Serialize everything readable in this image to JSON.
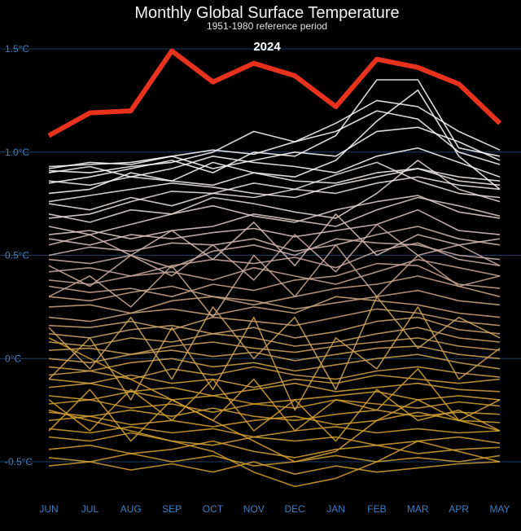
{
  "chart_data": {
    "type": "line",
    "title": "Monthly Global Surface Temperature",
    "subtitle": "1951-1980 reference period",
    "highlight_label": "2024",
    "xlabel": "",
    "ylabel": "",
    "categories": [
      "JUN",
      "JUL",
      "AUG",
      "SEP",
      "OCT",
      "NOV",
      "DEC",
      "JAN",
      "FEB",
      "MAR",
      "APR",
      "MAY"
    ],
    "ylim": [
      -0.65,
      1.62
    ],
    "y_ticks": [
      {
        "value": 1.5,
        "label": "1.5°C"
      },
      {
        "value": 1.0,
        "label": "1.0°C"
      },
      {
        "value": 0.5,
        "label": "0.5°C"
      },
      {
        "value": 0.0,
        "label": "0°C"
      },
      {
        "value": -0.5,
        "label": "-0.5°C"
      }
    ],
    "grid": true,
    "legend": "none",
    "colors": {
      "highlight": "#e8321e",
      "warm": "#ffffff",
      "neutral": "#c8a8a0",
      "cool": "#d4a030",
      "axis": "#3d7fc4",
      "gridline": "#1c3d63"
    },
    "series": [
      {
        "values": [
          1.08,
          1.19,
          1.2,
          1.49,
          1.34,
          1.43,
          1.37,
          1.22,
          1.45,
          1.41,
          1.33,
          1.14
        ],
        "highlight": true
      },
      {
        "values": [
          0.92,
          0.95,
          0.94,
          0.98,
          1.01,
          0.99,
          1.05,
          1.1,
          1.2,
          1.16,
          1.0,
          0.94
        ]
      },
      {
        "values": [
          0.91,
          0.9,
          0.93,
          0.95,
          1.0,
          1.1,
          1.05,
          1.14,
          1.25,
          1.22,
          1.1,
          1.01
        ]
      },
      {
        "values": [
          0.85,
          0.88,
          0.92,
          0.96,
          0.9,
          1.0,
          0.98,
          1.08,
          1.35,
          1.35,
          1.02,
          0.98
        ]
      },
      {
        "values": [
          0.93,
          0.94,
          0.95,
          0.98,
          0.92,
          0.96,
          1.0,
          0.98,
          1.1,
          1.12,
          1.05,
          0.96
        ]
      },
      {
        "values": [
          0.8,
          0.82,
          0.9,
          0.86,
          0.95,
          0.9,
          0.88,
          0.96,
          1.15,
          1.3,
          0.98,
          0.82
        ]
      },
      {
        "values": [
          0.9,
          0.93,
          0.88,
          0.92,
          0.98,
          0.95,
          0.93,
          0.9,
          0.98,
          1.02,
          0.95,
          0.88
        ]
      },
      {
        "values": [
          0.76,
          0.79,
          0.82,
          0.85,
          0.83,
          0.8,
          0.78,
          0.84,
          0.88,
          0.92,
          0.86,
          0.84
        ]
      },
      {
        "values": [
          0.68,
          0.7,
          0.76,
          0.81,
          0.8,
          0.78,
          0.82,
          0.89,
          0.95,
          0.86,
          0.8,
          0.78
        ]
      },
      {
        "values": [
          0.7,
          0.66,
          0.72,
          0.7,
          0.78,
          0.75,
          0.71,
          0.68,
          0.8,
          0.96,
          0.82,
          0.76
        ]
      },
      {
        "values": [
          0.64,
          0.6,
          0.65,
          0.7,
          0.74,
          0.69,
          0.66,
          0.72,
          0.76,
          0.79,
          0.71,
          0.68
        ]
      },
      {
        "values": [
          0.6,
          0.62,
          0.58,
          0.62,
          0.64,
          0.7,
          0.67,
          0.64,
          0.72,
          0.78,
          0.74,
          0.69
        ]
      },
      {
        "values": [
          0.58,
          0.55,
          0.6,
          0.58,
          0.61,
          0.63,
          0.59,
          0.62,
          0.65,
          0.72,
          0.62,
          0.6
        ]
      },
      {
        "values": [
          0.5,
          0.54,
          0.52,
          0.56,
          0.55,
          0.58,
          0.52,
          0.55,
          0.6,
          0.64,
          0.58,
          0.55
        ]
      },
      {
        "values": [
          0.48,
          0.46,
          0.5,
          0.44,
          0.52,
          0.55,
          0.5,
          0.58,
          0.56,
          0.55,
          0.5,
          0.48
        ]
      },
      {
        "values": [
          0.42,
          0.44,
          0.4,
          0.45,
          0.48,
          0.46,
          0.49,
          0.44,
          0.52,
          0.56,
          0.48,
          0.45
        ]
      },
      {
        "values": [
          0.38,
          0.36,
          0.4,
          0.42,
          0.38,
          0.44,
          0.4,
          0.36,
          0.42,
          0.48,
          0.44,
          0.4
        ]
      },
      {
        "values": [
          0.35,
          0.32,
          0.34,
          0.3,
          0.36,
          0.33,
          0.38,
          0.4,
          0.46,
          0.45,
          0.36,
          0.34
        ]
      },
      {
        "values": [
          0.3,
          0.28,
          0.32,
          0.35,
          0.3,
          0.26,
          0.3,
          0.34,
          0.36,
          0.4,
          0.35,
          0.3
        ]
      },
      {
        "values": [
          0.25,
          0.26,
          0.22,
          0.28,
          0.3,
          0.28,
          0.24,
          0.27,
          0.3,
          0.33,
          0.28,
          0.26
        ]
      },
      {
        "values": [
          0.2,
          0.18,
          0.22,
          0.24,
          0.21,
          0.25,
          0.22,
          0.3,
          0.28,
          0.26,
          0.22,
          0.2
        ]
      },
      {
        "values": [
          0.16,
          0.15,
          0.18,
          0.14,
          0.2,
          0.18,
          0.16,
          0.2,
          0.24,
          0.22,
          0.18,
          0.16
        ]
      },
      {
        "values": [
          0.12,
          0.1,
          0.14,
          0.16,
          0.12,
          0.15,
          0.1,
          0.13,
          0.18,
          0.2,
          0.14,
          0.12
        ]
      },
      {
        "values": [
          0.08,
          0.06,
          0.1,
          0.08,
          0.12,
          0.1,
          0.06,
          0.08,
          0.12,
          0.15,
          0.1,
          0.08
        ]
      },
      {
        "values": [
          0.04,
          0.05,
          0.02,
          0.06,
          0.08,
          0.05,
          0.03,
          0.06,
          0.08,
          0.1,
          0.06,
          0.04
        ]
      },
      {
        "values": [
          0.0,
          -0.02,
          0.02,
          0.04,
          0.01,
          0.03,
          -0.01,
          0.02,
          0.05,
          0.06,
          0.02,
          0.0
        ]
      },
      {
        "values": [
          -0.04,
          -0.06,
          -0.02,
          0.0,
          -0.04,
          -0.02,
          -0.06,
          -0.03,
          0.0,
          0.02,
          -0.02,
          -0.05
        ]
      },
      {
        "values": [
          -0.08,
          -0.06,
          -0.1,
          -0.05,
          -0.08,
          -0.04,
          -0.08,
          -0.1,
          -0.06,
          -0.04,
          -0.07,
          -0.09
        ]
      },
      {
        "values": [
          -0.1,
          -0.12,
          -0.08,
          -0.12,
          -0.1,
          -0.14,
          -0.1,
          -0.12,
          -0.08,
          -0.1,
          -0.12,
          -0.1
        ]
      },
      {
        "values": [
          -0.14,
          -0.12,
          -0.16,
          -0.14,
          -0.18,
          -0.15,
          -0.12,
          -0.16,
          -0.14,
          -0.12,
          -0.15,
          -0.16
        ]
      },
      {
        "values": [
          -0.18,
          -0.2,
          -0.16,
          -0.2,
          -0.18,
          -0.22,
          -0.2,
          -0.18,
          -0.16,
          -0.2,
          -0.18,
          -0.2
        ]
      },
      {
        "values": [
          -0.22,
          -0.2,
          -0.24,
          -0.22,
          -0.26,
          -0.22,
          -0.24,
          -0.2,
          -0.22,
          -0.24,
          -0.21,
          -0.23
        ]
      },
      {
        "values": [
          -0.26,
          -0.28,
          -0.25,
          -0.28,
          -0.24,
          -0.28,
          -0.3,
          -0.27,
          -0.25,
          -0.28,
          -0.26,
          -0.27
        ]
      },
      {
        "values": [
          -0.3,
          -0.28,
          -0.32,
          -0.3,
          -0.33,
          -0.3,
          -0.28,
          -0.32,
          -0.3,
          -0.26,
          -0.3,
          -0.31
        ]
      },
      {
        "values": [
          -0.34,
          -0.36,
          -0.33,
          -0.36,
          -0.34,
          -0.38,
          -0.35,
          -0.33,
          -0.36,
          -0.34,
          -0.36,
          -0.35
        ]
      },
      {
        "values": [
          -0.38,
          -0.4,
          -0.36,
          -0.4,
          -0.42,
          -0.38,
          -0.4,
          -0.38,
          -0.42,
          -0.4,
          -0.38,
          -0.41
        ]
      },
      {
        "values": [
          -0.44,
          -0.42,
          -0.46,
          -0.44,
          -0.4,
          -0.45,
          -0.48,
          -0.44,
          -0.42,
          -0.46,
          -0.44,
          -0.43
        ]
      },
      {
        "values": [
          -0.48,
          -0.5,
          -0.46,
          -0.5,
          -0.47,
          -0.52,
          -0.5,
          -0.47,
          -0.5,
          -0.48,
          -0.5,
          -0.47
        ]
      },
      {
        "values": [
          -0.52,
          -0.5,
          -0.54,
          -0.51,
          -0.55,
          -0.5,
          -0.56,
          -0.52,
          -0.55,
          -0.53,
          -0.51,
          -0.5
        ]
      },
      {
        "values": [
          -0.25,
          -0.3,
          -0.35,
          -0.4,
          -0.45,
          -0.55,
          -0.62,
          -0.58,
          -0.5,
          -0.4,
          -0.45,
          -0.5
        ]
      },
      {
        "values": [
          0.1,
          0.0,
          -0.1,
          -0.2,
          -0.3,
          -0.4,
          -0.5,
          -0.45,
          -0.3,
          -0.2,
          -0.3,
          -0.35
        ]
      },
      {
        "values": [
          0.75,
          0.72,
          0.78,
          0.74,
          0.8,
          0.85,
          0.82,
          0.8,
          0.85,
          0.88,
          0.84,
          0.82
        ]
      },
      {
        "values": [
          0.86,
          0.84,
          0.88,
          0.86,
          0.84,
          0.9,
          0.86,
          0.85,
          0.9,
          0.92,
          0.88,
          0.86
        ]
      },
      {
        "values": [
          0.55,
          0.6,
          0.5,
          0.62,
          0.48,
          0.66,
          0.45,
          0.7,
          0.5,
          0.6,
          0.55,
          0.58
        ]
      },
      {
        "values": [
          0.3,
          0.4,
          0.25,
          0.45,
          0.2,
          0.5,
          0.3,
          0.55,
          0.3,
          0.5,
          0.35,
          0.4
        ]
      },
      {
        "values": [
          -0.1,
          0.1,
          -0.2,
          0.15,
          -0.15,
          0.2,
          -0.25,
          0.1,
          -0.05,
          0.25,
          -0.1,
          0.05
        ]
      },
      {
        "values": [
          0.15,
          -0.05,
          0.2,
          -0.1,
          0.25,
          0.0,
          0.2,
          -0.15,
          0.3,
          0.05,
          0.2,
          0.1
        ]
      },
      {
        "values": [
          -0.35,
          -0.15,
          -0.4,
          -0.2,
          -0.3,
          -0.1,
          -0.35,
          -0.2,
          -0.25,
          -0.05,
          -0.3,
          -0.2
        ]
      },
      {
        "values": [
          0.45,
          0.35,
          0.5,
          0.4,
          0.55,
          0.38,
          0.6,
          0.42,
          0.65,
          0.5,
          0.55,
          0.45
        ]
      },
      {
        "values": [
          -0.2,
          -0.35,
          -0.15,
          -0.3,
          -0.1,
          -0.35,
          -0.2,
          -0.4,
          -0.15,
          -0.3,
          -0.25,
          -0.35
        ]
      }
    ]
  }
}
